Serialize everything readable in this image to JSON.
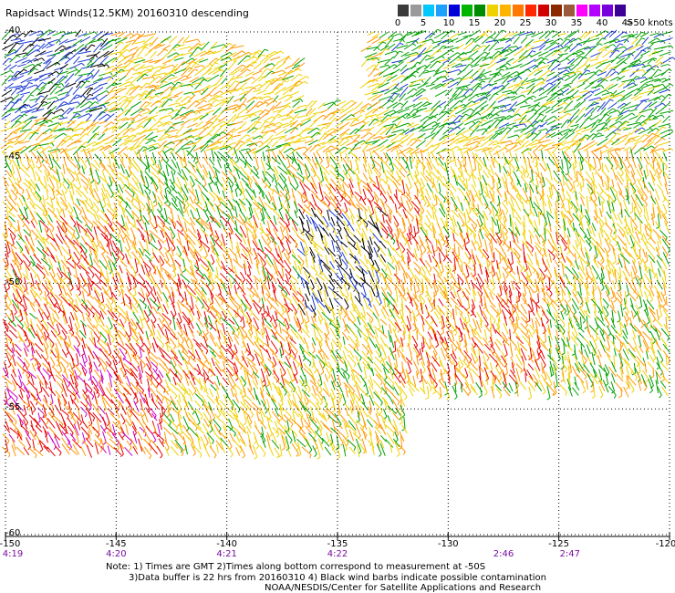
{
  "title": "Rapidsact Winds(12.5KM) 20160310 descending",
  "legend": {
    "unit": ">50 knots",
    "ticks": [
      "0",
      "5",
      "10",
      "15",
      "20",
      "25",
      "30",
      "35",
      "40",
      "45"
    ],
    "colors": [
      "#3a3a3a",
      "#9a9a9a",
      "#00c8ff",
      "#1ea0ff",
      "#0000d8",
      "#00b400",
      "#008c00",
      "#f0d200",
      "#ffb400",
      "#ff7800",
      "#ff2800",
      "#d20000",
      "#8c2800",
      "#9b5a3c",
      "#ff00ff",
      "#b400ff",
      "#7800dc",
      "#3c0096"
    ]
  },
  "map": {
    "lat_labels": [
      "-40",
      "-45",
      "-50",
      "-55",
      "-60"
    ],
    "lon_labels": [
      "-150",
      "-145",
      "-140",
      "-135",
      "-130",
      "-125",
      "-120"
    ],
    "time_labels": [
      {
        "text": "4:19",
        "lon": -150
      },
      {
        "text": "4:20",
        "lon": -145
      },
      {
        "text": "4:21",
        "lon": -140
      },
      {
        "text": "4:22",
        "lon": -135
      },
      {
        "text": "2:46",
        "lon": -127.5
      },
      {
        "text": "2:47",
        "lon": -124.5
      }
    ],
    "lon_range": [
      -150,
      -120
    ],
    "lat_range": [
      -40,
      -60
    ],
    "colors": {
      "black": "#000000",
      "blue": "#1e3cd2",
      "green": "#00a000",
      "yellow": "#f0d200",
      "orange": "#ff9600",
      "red": "#e60000",
      "magenta": "#c800c8"
    }
  },
  "notes": [
    "Note: 1) Times are GMT 2)Times along bottom correspond to measurement at -50S",
    "3)Data buffer is 22 hrs from 20160310 4) Black wind barbs indicate possible contamination",
    "NOAA/NESDIS/Center for Satellite Applications and Research"
  ]
}
